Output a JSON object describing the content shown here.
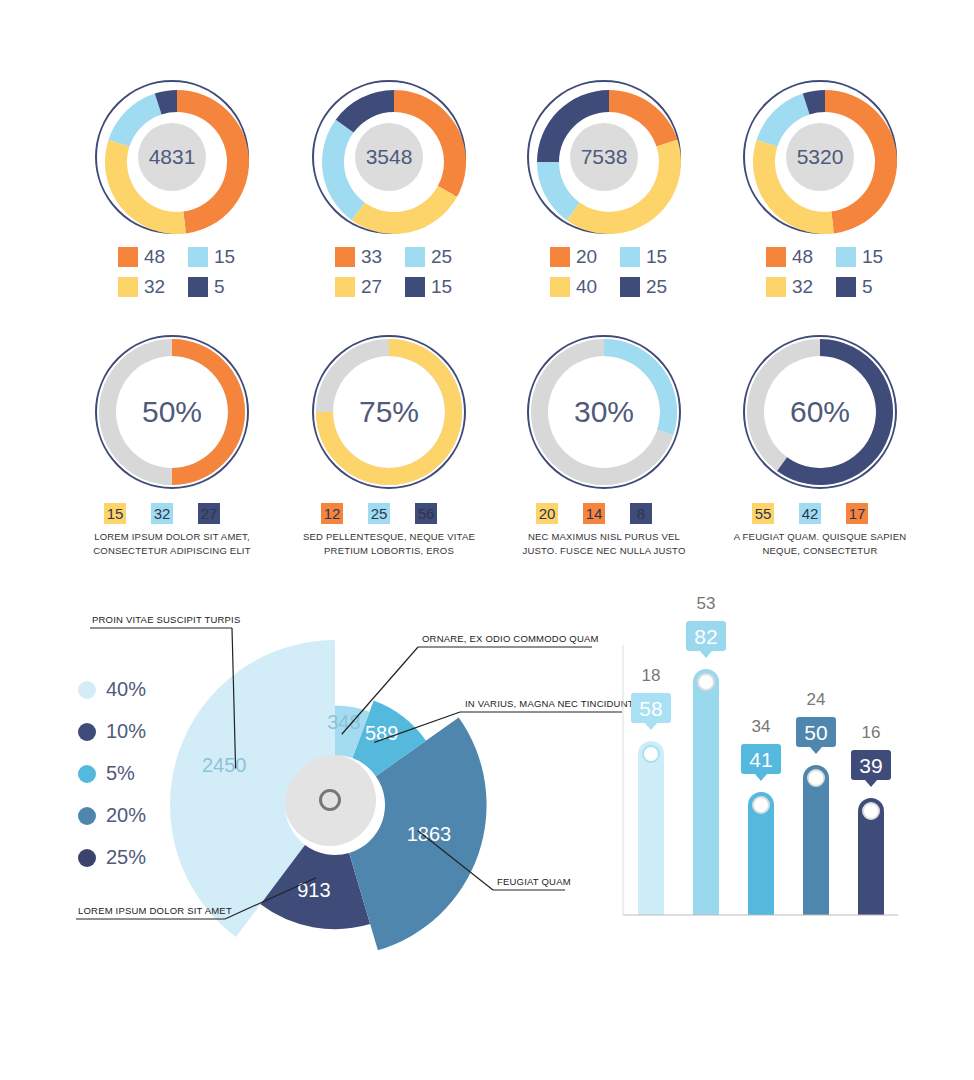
{
  "chart_data": [
    {
      "type": "donut",
      "center_value": 4831,
      "values": [
        48,
        32,
        15,
        5
      ],
      "colors": [
        "#f5843c",
        "#fdd46a",
        "#9fdcf1",
        "#3f4b79"
      ]
    },
    {
      "type": "donut",
      "center_value": 3548,
      "values": [
        33,
        27,
        25,
        15
      ],
      "colors": [
        "#f5843c",
        "#fdd46a",
        "#9fdcf1",
        "#3f4b79"
      ]
    },
    {
      "type": "donut",
      "center_value": 7538,
      "values": [
        20,
        40,
        15,
        25
      ],
      "colors": [
        "#f5843c",
        "#fdd46a",
        "#9fdcf1",
        "#3f4b79"
      ]
    },
    {
      "type": "donut",
      "center_value": 5320,
      "values": [
        48,
        32,
        15,
        5
      ],
      "colors": [
        "#f5843c",
        "#fdd46a",
        "#9fdcf1",
        "#3f4b79"
      ]
    },
    {
      "type": "gauge",
      "values": [
        50
      ],
      "value_labels": [
        "50%"
      ],
      "ylim": [
        0,
        100
      ],
      "color": "#f5843c",
      "items": [
        {
          "value": 15,
          "color": "#fdd46a"
        },
        {
          "value": 32,
          "color": "#9fdcf1"
        },
        {
          "value": 27,
          "color": "#3f4b79"
        }
      ],
      "caption": "LOREM IPSUM DOLOR SIT AMET, CONSECTETUR ADIPISCING ELIT"
    },
    {
      "type": "gauge",
      "values": [
        75
      ],
      "value_labels": [
        "75%"
      ],
      "ylim": [
        0,
        100
      ],
      "color": "#fdd46a",
      "items": [
        {
          "value": 12,
          "color": "#f5843c"
        },
        {
          "value": 25,
          "color": "#9fdcf1"
        },
        {
          "value": 56,
          "color": "#3f4b79"
        }
      ],
      "caption": "SED PELLENTESQUE, NEQUE VITAE PRETIUM LOBORTIS, EROS"
    },
    {
      "type": "gauge",
      "values": [
        30
      ],
      "value_labels": [
        "30%"
      ],
      "ylim": [
        0,
        100
      ],
      "color": "#9fdcf1",
      "items": [
        {
          "value": 20,
          "color": "#fdd46a"
        },
        {
          "value": 14,
          "color": "#f5843c"
        },
        {
          "value": 8,
          "color": "#3f4b79"
        }
      ],
      "caption": "NEC MAXIMUS NISL PURUS VEL JUSTO. FUSCE NEC NULLA JUSTO"
    },
    {
      "type": "gauge",
      "values": [
        60
      ],
      "value_labels": [
        "60%"
      ],
      "ylim": [
        0,
        100
      ],
      "color": "#3f4b79",
      "items": [
        {
          "value": 55,
          "color": "#fdd46a"
        },
        {
          "value": 42,
          "color": "#9fdcf1"
        },
        {
          "value": 17,
          "color": "#f5843c"
        }
      ],
      "caption": "A FEUGIAT QUAM. QUISQUE SAPIEN NEQUE, CONSECTETUR"
    },
    {
      "type": "polar_area",
      "categories": [
        "PROIN VITAE SUSCIPIT TURPIS",
        "LOREM IPSUM DOLOR SIT AMET",
        "FEUGIAT QUAM",
        "IN VARIUS, MAGNA NEC TINCIDUNT",
        "ORNARE, EX ODIO COMMODO QUAM"
      ],
      "values": [
        2450,
        913,
        1863,
        589,
        348
      ],
      "colors": [
        "#d3edf8",
        "#3f4b79",
        "#4f86ad",
        "#55b8dd",
        "#a3dcf0"
      ],
      "legend_items": [
        {
          "value": 40,
          "label": "40%",
          "color": "#d3edf8"
        },
        {
          "value": 10,
          "label": "10%",
          "color": "#3f4b79"
        },
        {
          "value": 5,
          "label": "5%",
          "color": "#55b8dd"
        },
        {
          "value": 20,
          "label": "20%",
          "color": "#4f86ad"
        },
        {
          "value": 25,
          "label": "25%",
          "color": "#39436d"
        }
      ]
    },
    {
      "type": "bar",
      "categories": [
        null,
        null,
        null,
        null,
        null
      ],
      "values": [
        58,
        82,
        41,
        50,
        39
      ],
      "colors": [
        "#cdeef9",
        "#9ad8ee",
        "#55b8dd",
        "#4f86ad",
        "#3f4b79"
      ],
      "secondary_values": [
        18,
        53,
        34,
        24,
        16
      ],
      "ylim": [
        0,
        90
      ],
      "data_labels": true,
      "tick_labels": false
    }
  ]
}
